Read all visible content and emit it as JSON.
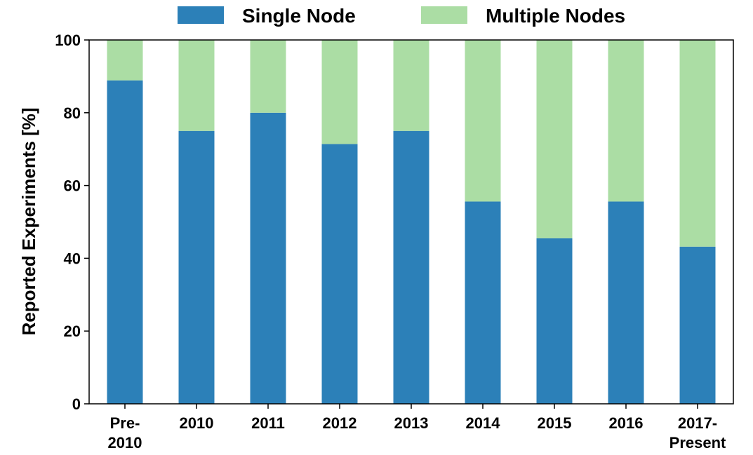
{
  "chart_data": {
    "type": "bar",
    "stacked": true,
    "categories": [
      [
        "Pre-",
        "2010"
      ],
      [
        "2010"
      ],
      [
        "2011"
      ],
      [
        "2012"
      ],
      [
        "2013"
      ],
      [
        "2014"
      ],
      [
        "2015"
      ],
      [
        "2016"
      ],
      [
        "2017-",
        "Present"
      ]
    ],
    "series": [
      {
        "name": "Single Node",
        "color": "#2c80b8",
        "values": [
          88.9,
          75.0,
          80.0,
          71.4,
          75.0,
          55.6,
          45.5,
          55.6,
          43.2
        ]
      },
      {
        "name": "Multiple Nodes",
        "color": "#abdda4",
        "values": [
          11.1,
          25.0,
          20.0,
          28.6,
          25.0,
          44.4,
          54.5,
          44.4,
          56.8
        ]
      }
    ],
    "ylabel": "Reported Experiments [%]",
    "xlabel": "",
    "ylim": [
      0,
      100
    ],
    "yticks": [
      0,
      20,
      40,
      60,
      80,
      100
    ],
    "legend": "top",
    "grid": false
  }
}
